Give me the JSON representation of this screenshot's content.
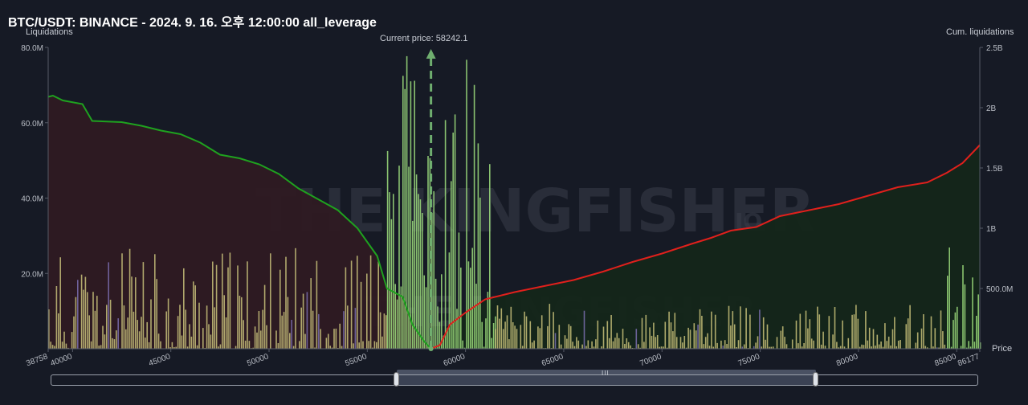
{
  "title": "BTC/USDT: BINANCE - 2024. 9. 16. 오후 12:00:00 all_leverage",
  "watermark": {
    "brand": "THE KINGFISHER",
    "suffix": "IO"
  },
  "colors": {
    "background": "#161a25",
    "short_fill": "#2e1a22",
    "long_fill": "#142619",
    "cum_short_line": "#1fa21f",
    "cum_long_line": "#e0201c",
    "bar_yellow": "#c9c27a",
    "bar_green": "#9fe07e",
    "bar_purple": "#7a6fb0",
    "current_price_line": "#6fae6f"
  },
  "chart_data": {
    "type": "bar",
    "x_label": "Price",
    "y_left_label": "Liquidations",
    "y_right_label": "Cum. liquidations",
    "x_range": [
      38758,
      86177
    ],
    "x_ticks": [
      "38758",
      "40000",
      "45000",
      "50000",
      "55000",
      "60000",
      "65000",
      "70000",
      "75000",
      "80000",
      "85000",
      "86177"
    ],
    "y_left_ticks": [
      "80.0M",
      "60.0M",
      "40.0M",
      "20.0M"
    ],
    "y_left_range": [
      0,
      80000000
    ],
    "y_right_ticks": [
      "2.5B",
      "2B",
      "1.5B",
      "1B",
      "500.0M"
    ],
    "y_right_range": [
      0,
      2500000000
    ],
    "current_price_label": "Current price: 58242.1",
    "current_price": 58242.1,
    "cum_short_liquidations": [
      {
        "x": 38758,
        "y": 2090000000
      },
      {
        "x": 39000,
        "y": 2100000000
      },
      {
        "x": 39500,
        "y": 2060000000
      },
      {
        "x": 40500,
        "y": 2030000000
      },
      {
        "x": 41000,
        "y": 1890000000
      },
      {
        "x": 42500,
        "y": 1880000000
      },
      {
        "x": 43500,
        "y": 1850000000
      },
      {
        "x": 44500,
        "y": 1810000000
      },
      {
        "x": 45500,
        "y": 1780000000
      },
      {
        "x": 46500,
        "y": 1710000000
      },
      {
        "x": 47500,
        "y": 1610000000
      },
      {
        "x": 48500,
        "y": 1580000000
      },
      {
        "x": 49500,
        "y": 1530000000
      },
      {
        "x": 50500,
        "y": 1450000000
      },
      {
        "x": 51500,
        "y": 1330000000
      },
      {
        "x": 52500,
        "y": 1240000000
      },
      {
        "x": 53500,
        "y": 1150000000
      },
      {
        "x": 54500,
        "y": 1000000000
      },
      {
        "x": 55500,
        "y": 770000000
      },
      {
        "x": 56000,
        "y": 500000000
      },
      {
        "x": 56800,
        "y": 430000000
      },
      {
        "x": 57300,
        "y": 200000000
      },
      {
        "x": 57900,
        "y": 60000000
      },
      {
        "x": 58242,
        "y": 0
      }
    ],
    "cum_long_liquidations": [
      {
        "x": 58242,
        "y": 0
      },
      {
        "x": 58700,
        "y": 30000000
      },
      {
        "x": 59200,
        "y": 200000000
      },
      {
        "x": 60000,
        "y": 300000000
      },
      {
        "x": 61000,
        "y": 410000000
      },
      {
        "x": 62500,
        "y": 470000000
      },
      {
        "x": 64000,
        "y": 520000000
      },
      {
        "x": 65500,
        "y": 570000000
      },
      {
        "x": 67000,
        "y": 640000000
      },
      {
        "x": 68500,
        "y": 720000000
      },
      {
        "x": 70000,
        "y": 790000000
      },
      {
        "x": 71500,
        "y": 870000000
      },
      {
        "x": 72500,
        "y": 920000000
      },
      {
        "x": 73500,
        "y": 980000000
      },
      {
        "x": 74800,
        "y": 1010000000
      },
      {
        "x": 76000,
        "y": 1100000000
      },
      {
        "x": 77500,
        "y": 1150000000
      },
      {
        "x": 79000,
        "y": 1200000000
      },
      {
        "x": 80500,
        "y": 1270000000
      },
      {
        "x": 82000,
        "y": 1340000000
      },
      {
        "x": 83500,
        "y": 1380000000
      },
      {
        "x": 84500,
        "y": 1460000000
      },
      {
        "x": 85300,
        "y": 1540000000
      },
      {
        "x": 86177,
        "y": 1690000000
      }
    ],
    "bar_groups": [
      {
        "name": "below_price_yellow",
        "range": [
          38758,
          56000
        ],
        "max": 27000000,
        "seed": 11
      },
      {
        "name": "near_price_green",
        "range": [
          56000,
          61500
        ],
        "max": 79000000,
        "seed": 23
      },
      {
        "name": "above_price_yellow",
        "range": [
          61500,
          84500
        ],
        "max": 12000000,
        "seed": 37
      },
      {
        "name": "far_green",
        "range": [
          84500,
          86177
        ],
        "max": 28000000,
        "seed": 41
      }
    ]
  },
  "scrollbar": {
    "grip_label": "III"
  }
}
